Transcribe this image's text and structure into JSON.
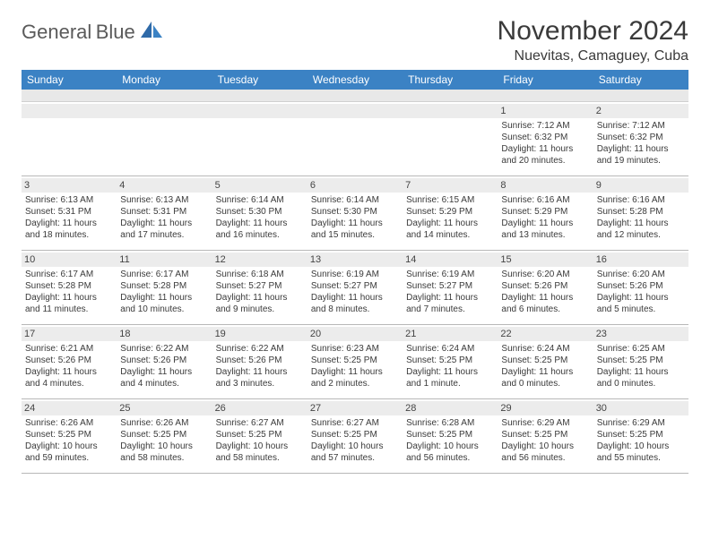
{
  "logo": {
    "textTop": "General",
    "textBottom": "Blue"
  },
  "title": "November 2024",
  "subtitle": "Nuevitas, Camaguey, Cuba",
  "colors": {
    "headerBg": "#3b82c4",
    "headerText": "#ffffff",
    "dayNumBg": "#ececec",
    "border": "#b8b8b8",
    "textColor": "#3a3a3a",
    "logoGray": "#5a5a5a",
    "logoBlue": "#3b7bbf"
  },
  "dayHeaders": [
    "Sunday",
    "Monday",
    "Tuesday",
    "Wednesday",
    "Thursday",
    "Friday",
    "Saturday"
  ],
  "weeks": [
    [
      {
        "n": "",
        "sr": "",
        "ss": "",
        "dl": ""
      },
      {
        "n": "",
        "sr": "",
        "ss": "",
        "dl": ""
      },
      {
        "n": "",
        "sr": "",
        "ss": "",
        "dl": ""
      },
      {
        "n": "",
        "sr": "",
        "ss": "",
        "dl": ""
      },
      {
        "n": "",
        "sr": "",
        "ss": "",
        "dl": ""
      },
      {
        "n": "1",
        "sr": "Sunrise: 7:12 AM",
        "ss": "Sunset: 6:32 PM",
        "dl": "Daylight: 11 hours and 20 minutes."
      },
      {
        "n": "2",
        "sr": "Sunrise: 7:12 AM",
        "ss": "Sunset: 6:32 PM",
        "dl": "Daylight: 11 hours and 19 minutes."
      }
    ],
    [
      {
        "n": "3",
        "sr": "Sunrise: 6:13 AM",
        "ss": "Sunset: 5:31 PM",
        "dl": "Daylight: 11 hours and 18 minutes."
      },
      {
        "n": "4",
        "sr": "Sunrise: 6:13 AM",
        "ss": "Sunset: 5:31 PM",
        "dl": "Daylight: 11 hours and 17 minutes."
      },
      {
        "n": "5",
        "sr": "Sunrise: 6:14 AM",
        "ss": "Sunset: 5:30 PM",
        "dl": "Daylight: 11 hours and 16 minutes."
      },
      {
        "n": "6",
        "sr": "Sunrise: 6:14 AM",
        "ss": "Sunset: 5:30 PM",
        "dl": "Daylight: 11 hours and 15 minutes."
      },
      {
        "n": "7",
        "sr": "Sunrise: 6:15 AM",
        "ss": "Sunset: 5:29 PM",
        "dl": "Daylight: 11 hours and 14 minutes."
      },
      {
        "n": "8",
        "sr": "Sunrise: 6:16 AM",
        "ss": "Sunset: 5:29 PM",
        "dl": "Daylight: 11 hours and 13 minutes."
      },
      {
        "n": "9",
        "sr": "Sunrise: 6:16 AM",
        "ss": "Sunset: 5:28 PM",
        "dl": "Daylight: 11 hours and 12 minutes."
      }
    ],
    [
      {
        "n": "10",
        "sr": "Sunrise: 6:17 AM",
        "ss": "Sunset: 5:28 PM",
        "dl": "Daylight: 11 hours and 11 minutes."
      },
      {
        "n": "11",
        "sr": "Sunrise: 6:17 AM",
        "ss": "Sunset: 5:28 PM",
        "dl": "Daylight: 11 hours and 10 minutes."
      },
      {
        "n": "12",
        "sr": "Sunrise: 6:18 AM",
        "ss": "Sunset: 5:27 PM",
        "dl": "Daylight: 11 hours and 9 minutes."
      },
      {
        "n": "13",
        "sr": "Sunrise: 6:19 AM",
        "ss": "Sunset: 5:27 PM",
        "dl": "Daylight: 11 hours and 8 minutes."
      },
      {
        "n": "14",
        "sr": "Sunrise: 6:19 AM",
        "ss": "Sunset: 5:27 PM",
        "dl": "Daylight: 11 hours and 7 minutes."
      },
      {
        "n": "15",
        "sr": "Sunrise: 6:20 AM",
        "ss": "Sunset: 5:26 PM",
        "dl": "Daylight: 11 hours and 6 minutes."
      },
      {
        "n": "16",
        "sr": "Sunrise: 6:20 AM",
        "ss": "Sunset: 5:26 PM",
        "dl": "Daylight: 11 hours and 5 minutes."
      }
    ],
    [
      {
        "n": "17",
        "sr": "Sunrise: 6:21 AM",
        "ss": "Sunset: 5:26 PM",
        "dl": "Daylight: 11 hours and 4 minutes."
      },
      {
        "n": "18",
        "sr": "Sunrise: 6:22 AM",
        "ss": "Sunset: 5:26 PM",
        "dl": "Daylight: 11 hours and 4 minutes."
      },
      {
        "n": "19",
        "sr": "Sunrise: 6:22 AM",
        "ss": "Sunset: 5:26 PM",
        "dl": "Daylight: 11 hours and 3 minutes."
      },
      {
        "n": "20",
        "sr": "Sunrise: 6:23 AM",
        "ss": "Sunset: 5:25 PM",
        "dl": "Daylight: 11 hours and 2 minutes."
      },
      {
        "n": "21",
        "sr": "Sunrise: 6:24 AM",
        "ss": "Sunset: 5:25 PM",
        "dl": "Daylight: 11 hours and 1 minute."
      },
      {
        "n": "22",
        "sr": "Sunrise: 6:24 AM",
        "ss": "Sunset: 5:25 PM",
        "dl": "Daylight: 11 hours and 0 minutes."
      },
      {
        "n": "23",
        "sr": "Sunrise: 6:25 AM",
        "ss": "Sunset: 5:25 PM",
        "dl": "Daylight: 11 hours and 0 minutes."
      }
    ],
    [
      {
        "n": "24",
        "sr": "Sunrise: 6:26 AM",
        "ss": "Sunset: 5:25 PM",
        "dl": "Daylight: 10 hours and 59 minutes."
      },
      {
        "n": "25",
        "sr": "Sunrise: 6:26 AM",
        "ss": "Sunset: 5:25 PM",
        "dl": "Daylight: 10 hours and 58 minutes."
      },
      {
        "n": "26",
        "sr": "Sunrise: 6:27 AM",
        "ss": "Sunset: 5:25 PM",
        "dl": "Daylight: 10 hours and 58 minutes."
      },
      {
        "n": "27",
        "sr": "Sunrise: 6:27 AM",
        "ss": "Sunset: 5:25 PM",
        "dl": "Daylight: 10 hours and 57 minutes."
      },
      {
        "n": "28",
        "sr": "Sunrise: 6:28 AM",
        "ss": "Sunset: 5:25 PM",
        "dl": "Daylight: 10 hours and 56 minutes."
      },
      {
        "n": "29",
        "sr": "Sunrise: 6:29 AM",
        "ss": "Sunset: 5:25 PM",
        "dl": "Daylight: 10 hours and 56 minutes."
      },
      {
        "n": "30",
        "sr": "Sunrise: 6:29 AM",
        "ss": "Sunset: 5:25 PM",
        "dl": "Daylight: 10 hours and 55 minutes."
      }
    ]
  ]
}
